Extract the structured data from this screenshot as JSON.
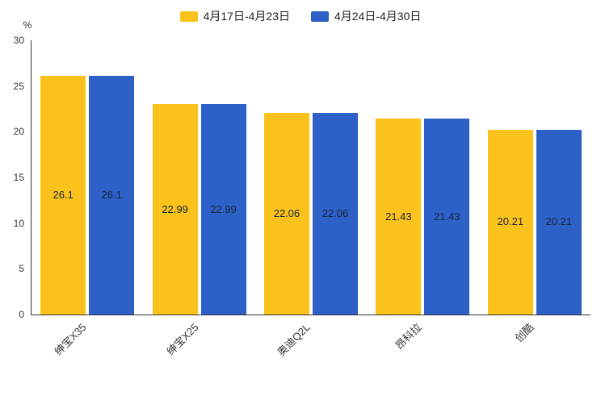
{
  "legend": [
    {
      "label": "4月17日-4月23日",
      "color": "#FCC21C"
    },
    {
      "label": "4月24日-4月30日",
      "color": "#2D61C7"
    }
  ],
  "chart_data": {
    "type": "bar",
    "categories": [
      "绅宝X35",
      "绅宝X25",
      "奥迪Q2L",
      "昂科拉",
      "创酷"
    ],
    "series": [
      {
        "name": "4月17日-4月23日",
        "color": "#FCC21C",
        "values": [
          26.1,
          22.99,
          22.06,
          21.43,
          20.21
        ]
      },
      {
        "name": "4月24日-4月30日",
        "color": "#2D61C7",
        "values": [
          26.1,
          22.99,
          22.06,
          21.43,
          20.21
        ]
      }
    ],
    "title": "",
    "xlabel": "",
    "ylabel": "%",
    "ylim": [
      0,
      30
    ],
    "yticks": [
      0,
      5,
      10,
      15,
      20,
      25,
      30
    ],
    "grid": false,
    "legend_position": "top",
    "value_labels": "inside-middle"
  }
}
